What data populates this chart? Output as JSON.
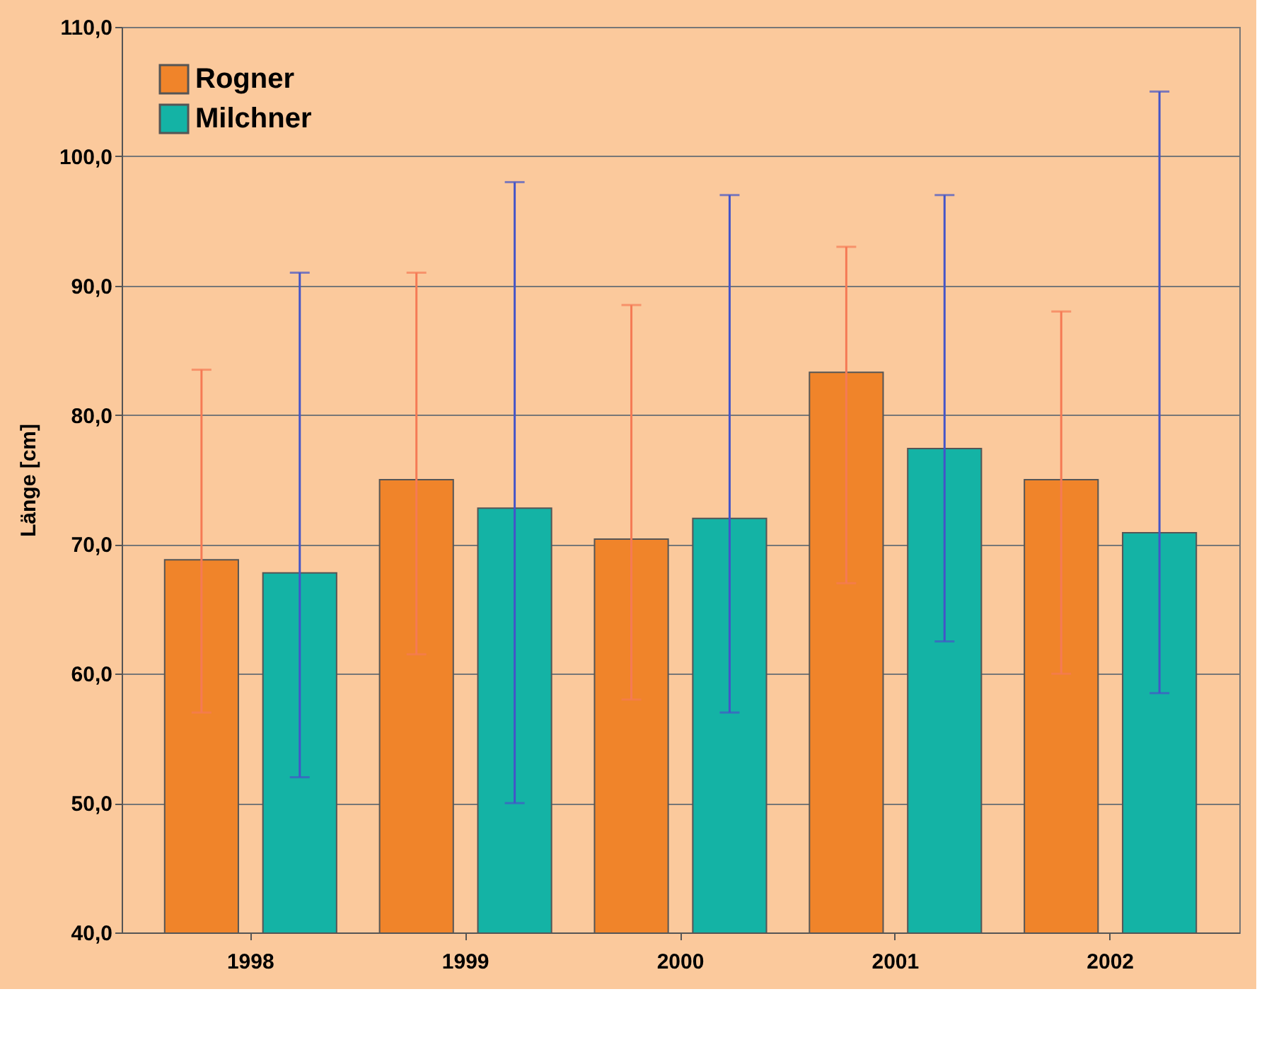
{
  "chart_data": {
    "type": "bar",
    "ylabel": "Länge [cm]",
    "categories": [
      "1998",
      "1999",
      "2000",
      "2001",
      "2002"
    ],
    "series": [
      {
        "name": "Rogner",
        "color": "#f0842a",
        "values": [
          68.8,
          75.0,
          70.4,
          83.3,
          75.0
        ],
        "errors": [
          [
            57.0,
            83.5
          ],
          [
            61.5,
            91.0
          ],
          [
            58.0,
            88.5
          ],
          [
            67.0,
            93.0
          ],
          [
            60.0,
            88.0
          ]
        ]
      },
      {
        "name": "Milchner",
        "color": "#14b3a5",
        "values": [
          67.8,
          72.8,
          72.0,
          77.4,
          70.9
        ],
        "errors": [
          [
            52.0,
            91.0
          ],
          [
            50.0,
            98.0
          ],
          [
            57.0,
            97.0
          ],
          [
            62.5,
            97.0
          ],
          [
            58.5,
            105.0
          ]
        ]
      }
    ],
    "ylim": [
      40,
      110
    ],
    "yticks": [
      {
        "value": 40,
        "label": "40,0"
      },
      {
        "value": 50,
        "label": "50,0"
      },
      {
        "value": 60,
        "label": "60,0"
      },
      {
        "value": 70,
        "label": "70,0"
      },
      {
        "value": 80,
        "label": "80,0"
      },
      {
        "value": 90,
        "label": "90,0"
      },
      {
        "value": 100,
        "label": "100,0"
      },
      {
        "value": 110,
        "label": "110,0"
      }
    ],
    "grid": "y",
    "legend": "top left"
  }
}
